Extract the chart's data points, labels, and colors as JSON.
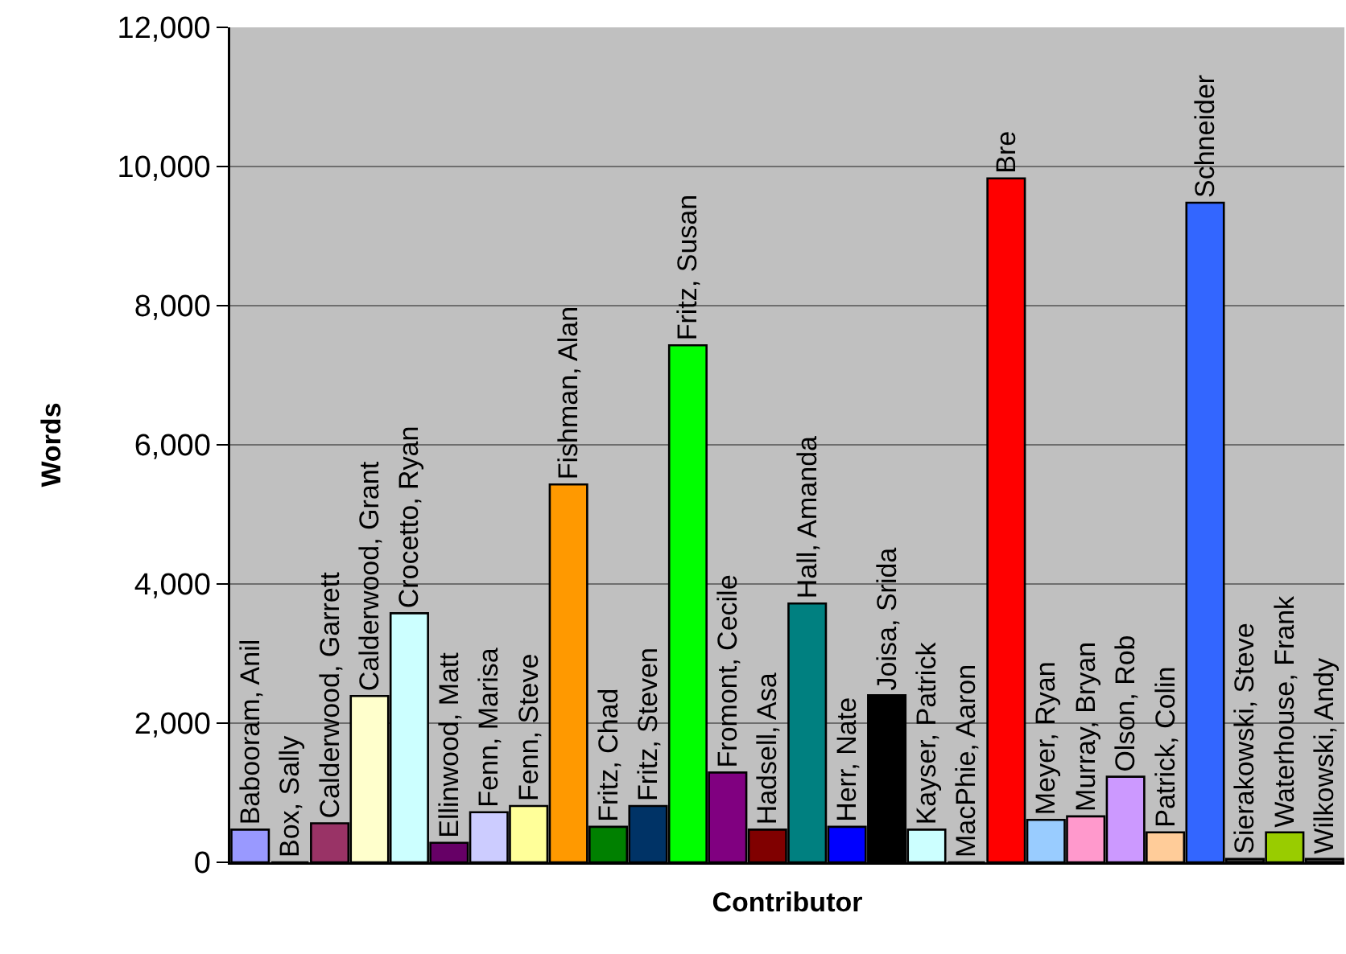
{
  "chart_data": {
    "type": "bar",
    "xlabel": "Contributor",
    "ylabel": "Words",
    "categories": [
      "Babooram, Anil",
      "Box, Sally",
      "Calderwood, Garrett",
      "Calderwood, Grant",
      "Crocetto, Ryan",
      "Ellinwood, Matt",
      "Fenn, Marisa",
      "Fenn, Steve",
      "Fishman, Alan",
      "Fritz, Chad",
      "Fritz, Steven",
      "Fritz, Susan",
      "Fromont, Cecile",
      "Hadsell, Asa",
      "Hall, Amanda",
      "Herr, Nate",
      "Joisa, Srida",
      "Kayser, Patrick",
      "MacPhie, Aaron",
      "Bre",
      "Meyer, Ryan",
      "Murray, Bryan",
      "Olson, Rob",
      "Patrick, Colin",
      "Schneider",
      "Sierakowski, Steve",
      "Waterhouse, Frank",
      "Wilkowski, Andy"
    ],
    "values": [
      470,
      0,
      560,
      2390,
      3580,
      280,
      720,
      810,
      5430,
      510,
      810,
      7430,
      1290,
      470,
      3720,
      510,
      2400,
      470,
      0,
      9830,
      610,
      660,
      1230,
      430,
      9480,
      50,
      430,
      50
    ],
    "colors": [
      "#9999ff",
      "#000000",
      "#993366",
      "#ffffcc",
      "#ccffff",
      "#660066",
      "#ccccff",
      "#ffff99",
      "#ff9900",
      "#008000",
      "#003366",
      "#00ff00",
      "#800080",
      "#800000",
      "#008080",
      "#0000ff",
      "#000000",
      "#ccffff",
      "#000000",
      "#ff0000",
      "#99ccff",
      "#ff99cc",
      "#cc99ff",
      "#ffcc99",
      "#3366ff",
      "#333333",
      "#99cc00",
      "#333333"
    ],
    "ylim": [
      0,
      12000
    ],
    "yticks": [
      {
        "value": 0,
        "label": "0"
      },
      {
        "value": 2000,
        "label": "2,000"
      },
      {
        "value": 4000,
        "label": "4,000"
      },
      {
        "value": 6000,
        "label": "6,000"
      },
      {
        "value": 8000,
        "label": "8,000"
      },
      {
        "value": 10000,
        "label": "10,000"
      },
      {
        "value": 12000,
        "label": "12,000"
      }
    ],
    "grid": "y",
    "tick_labels": "y"
  }
}
